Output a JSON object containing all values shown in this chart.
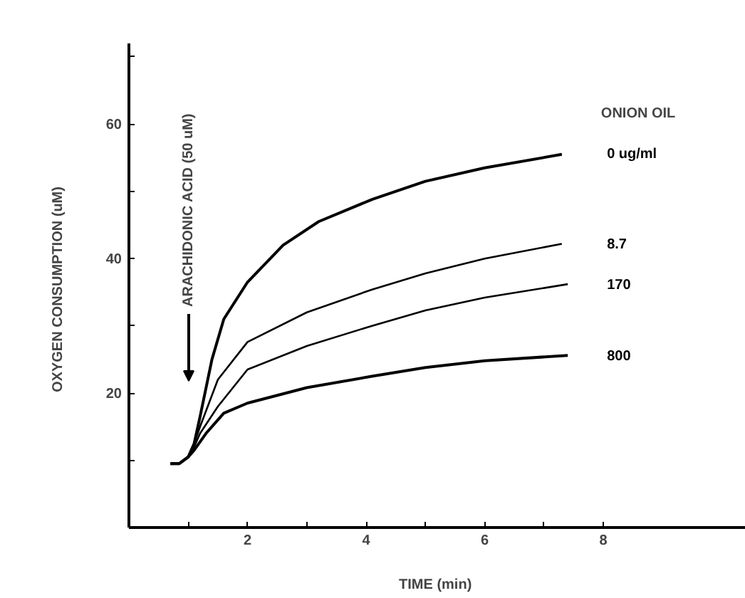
{
  "chart_data": {
    "type": "line",
    "xlabel": "TIME  (min)",
    "ylabel": "OXYGEN  CONSUMPTION  (uM)",
    "legend_title": "ONION  OIL",
    "xlim": [
      0,
      10.4
    ],
    "ylim": [
      0,
      72
    ],
    "xticks": [
      {
        "value": 1,
        "label": null
      },
      2,
      {
        "value": 3,
        "label": null
      },
      4,
      {
        "value": 5,
        "label": null
      },
      6,
      {
        "value": 7,
        "label": null
      },
      8
    ],
    "yticks": [
      {
        "value": 10,
        "label": null
      },
      20,
      {
        "value": 30,
        "label": null
      },
      40,
      {
        "value": 50,
        "label": null
      },
      60,
      {
        "value": 70,
        "label": null
      }
    ],
    "grid": false,
    "marker": "none",
    "line_style": "solid",
    "annotations": [
      "ARACHIDONIC  ACID  (50  uM)"
    ],
    "series": [
      {
        "name": "0  ug/ml",
        "color": "#000000",
        "x": [
          0.7,
          0.85,
          1.0,
          1.1,
          1.2,
          1.4,
          1.6,
          2.0,
          2.6,
          3.2,
          4.1,
          5.0,
          6.0,
          7.3
        ],
        "values": [
          9.5,
          9.5,
          10.5,
          12.5,
          16.5,
          25,
          31,
          36.5,
          42,
          45.5,
          48.8,
          51.5,
          53.5,
          55.5
        ]
      },
      {
        "name": "8.7",
        "color": "#000000",
        "x": [
          0.7,
          0.85,
          1.0,
          1.1,
          1.2,
          1.5,
          2.0,
          3.0,
          4.1,
          5.0,
          6.0,
          7.3
        ],
        "values": [
          9.5,
          9.5,
          10.5,
          12.5,
          15,
          22,
          27.6,
          32,
          35.4,
          37.8,
          40,
          42.2
        ]
      },
      {
        "name": "170",
        "color": "#000000",
        "x": [
          0.7,
          0.85,
          1.0,
          1.1,
          1.2,
          1.5,
          2.0,
          3.0,
          4.1,
          5.0,
          6.0,
          7.4
        ],
        "values": [
          9.5,
          9.5,
          10.5,
          12,
          14,
          18,
          23.5,
          27,
          30,
          32.3,
          34.2,
          36.2
        ]
      },
      {
        "name": "800",
        "color": "#000000",
        "x": [
          0.7,
          0.85,
          1.0,
          1.1,
          1.3,
          1.6,
          2.0,
          3.0,
          4.1,
          5.0,
          6.0,
          7.4
        ],
        "values": [
          9.5,
          9.5,
          10.5,
          11.5,
          14,
          17,
          18.5,
          20.8,
          22.5,
          23.8,
          24.8,
          25.6
        ]
      }
    ]
  }
}
